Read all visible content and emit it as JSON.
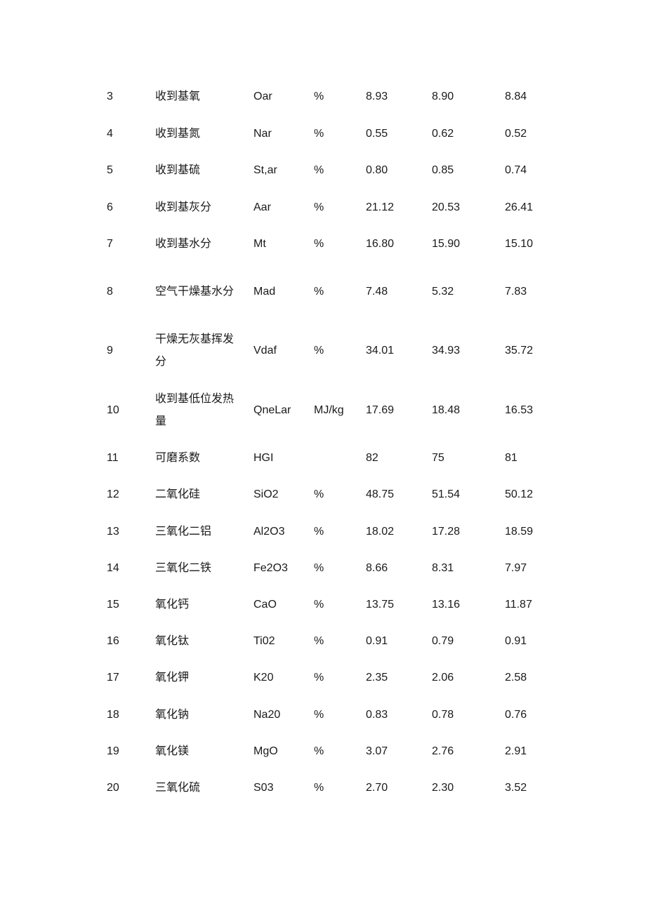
{
  "table": {
    "rows": [
      {
        "no": "3",
        "name": "收到基氧",
        "symbol": "Oar",
        "unit": "%",
        "v1": "8.93",
        "v2": "8.90",
        "v3": "8.84"
      },
      {
        "no": "4",
        "name": "收到基氮",
        "symbol": "Nar",
        "unit": "%",
        "v1": "0.55",
        "v2": "0.62",
        "v3": "0.52"
      },
      {
        "no": "5",
        "name": "收到基硫",
        "symbol": "St,ar",
        "unit": "%",
        "v1": "0.80",
        "v2": "0.85",
        "v3": "0.74"
      },
      {
        "no": "6",
        "name": "收到基灰分",
        "symbol": "Aar",
        "unit": "%",
        "v1": "21.12",
        "v2": "20.53",
        "v3": "26.41"
      },
      {
        "no": "7",
        "name": "收到基水分",
        "symbol": "Mt",
        "unit": "%",
        "v1": "16.80",
        "v2": "15.90",
        "v3": "15.10"
      },
      {
        "no": "8",
        "name": "空气干燥基水分",
        "symbol": "Mad",
        "unit": "%",
        "v1": "7.48",
        "v2": "5.32",
        "v3": "7.83"
      },
      {
        "no": "9",
        "name": "干燥无灰基挥发分",
        "symbol": "Vdaf",
        "unit": "%",
        "v1": "34.01",
        "v2": "34.93",
        "v3": "35.72"
      },
      {
        "no": "10",
        "name": "收到基低位发热量",
        "symbol": "QneLar",
        "unit": "MJ/kg",
        "v1": "17.69",
        "v2": "18.48",
        "v3": "16.53"
      },
      {
        "no": "11",
        "name": "可磨系数",
        "symbol": "HGI",
        "unit": "",
        "v1": "82",
        "v2": "75",
        "v3": "81"
      },
      {
        "no": "12",
        "name": "二氧化硅",
        "symbol": "SiO2",
        "unit": "%",
        "v1": "48.75",
        "v2": "51.54",
        "v3": "50.12"
      },
      {
        "no": "13",
        "name": "三氧化二铝",
        "symbol": "Al2O3",
        "unit": "%",
        "v1": "18.02",
        "v2": "17.28",
        "v3": "18.59"
      },
      {
        "no": "14",
        "name": "三氧化二铁",
        "symbol": "Fe2O3",
        "unit": "%",
        "v1": "8.66",
        "v2": "8.31",
        "v3": "7.97"
      },
      {
        "no": "15",
        "name": "氧化钙",
        "symbol": "CaO",
        "unit": "%",
        "v1": "13.75",
        "v2": "13.16",
        "v3": "11.87"
      },
      {
        "no": "16",
        "name": "氧化钛",
        "symbol": "Ti02",
        "unit": "%",
        "v1": "0.91",
        "v2": "0.79",
        "v3": "0.91"
      },
      {
        "no": "17",
        "name": "氧化钾",
        "symbol": "K20",
        "unit": "%",
        "v1": "2.35",
        "v2": "2.06",
        "v3": "2.58"
      },
      {
        "no": "18",
        "name": "氧化钠",
        "symbol": "Na20",
        "unit": "%",
        "v1": "0.83",
        "v2": "0.78",
        "v3": "0.76"
      },
      {
        "no": "19",
        "name": "氧化镁",
        "symbol": "MgO",
        "unit": "%",
        "v1": "3.07",
        "v2": "2.76",
        "v3": "2.91"
      },
      {
        "no": "20",
        "name": "三氧化硫",
        "symbol": "S03",
        "unit": "%",
        "v1": "2.70",
        "v2": "2.30",
        "v3": "3.52"
      }
    ]
  }
}
